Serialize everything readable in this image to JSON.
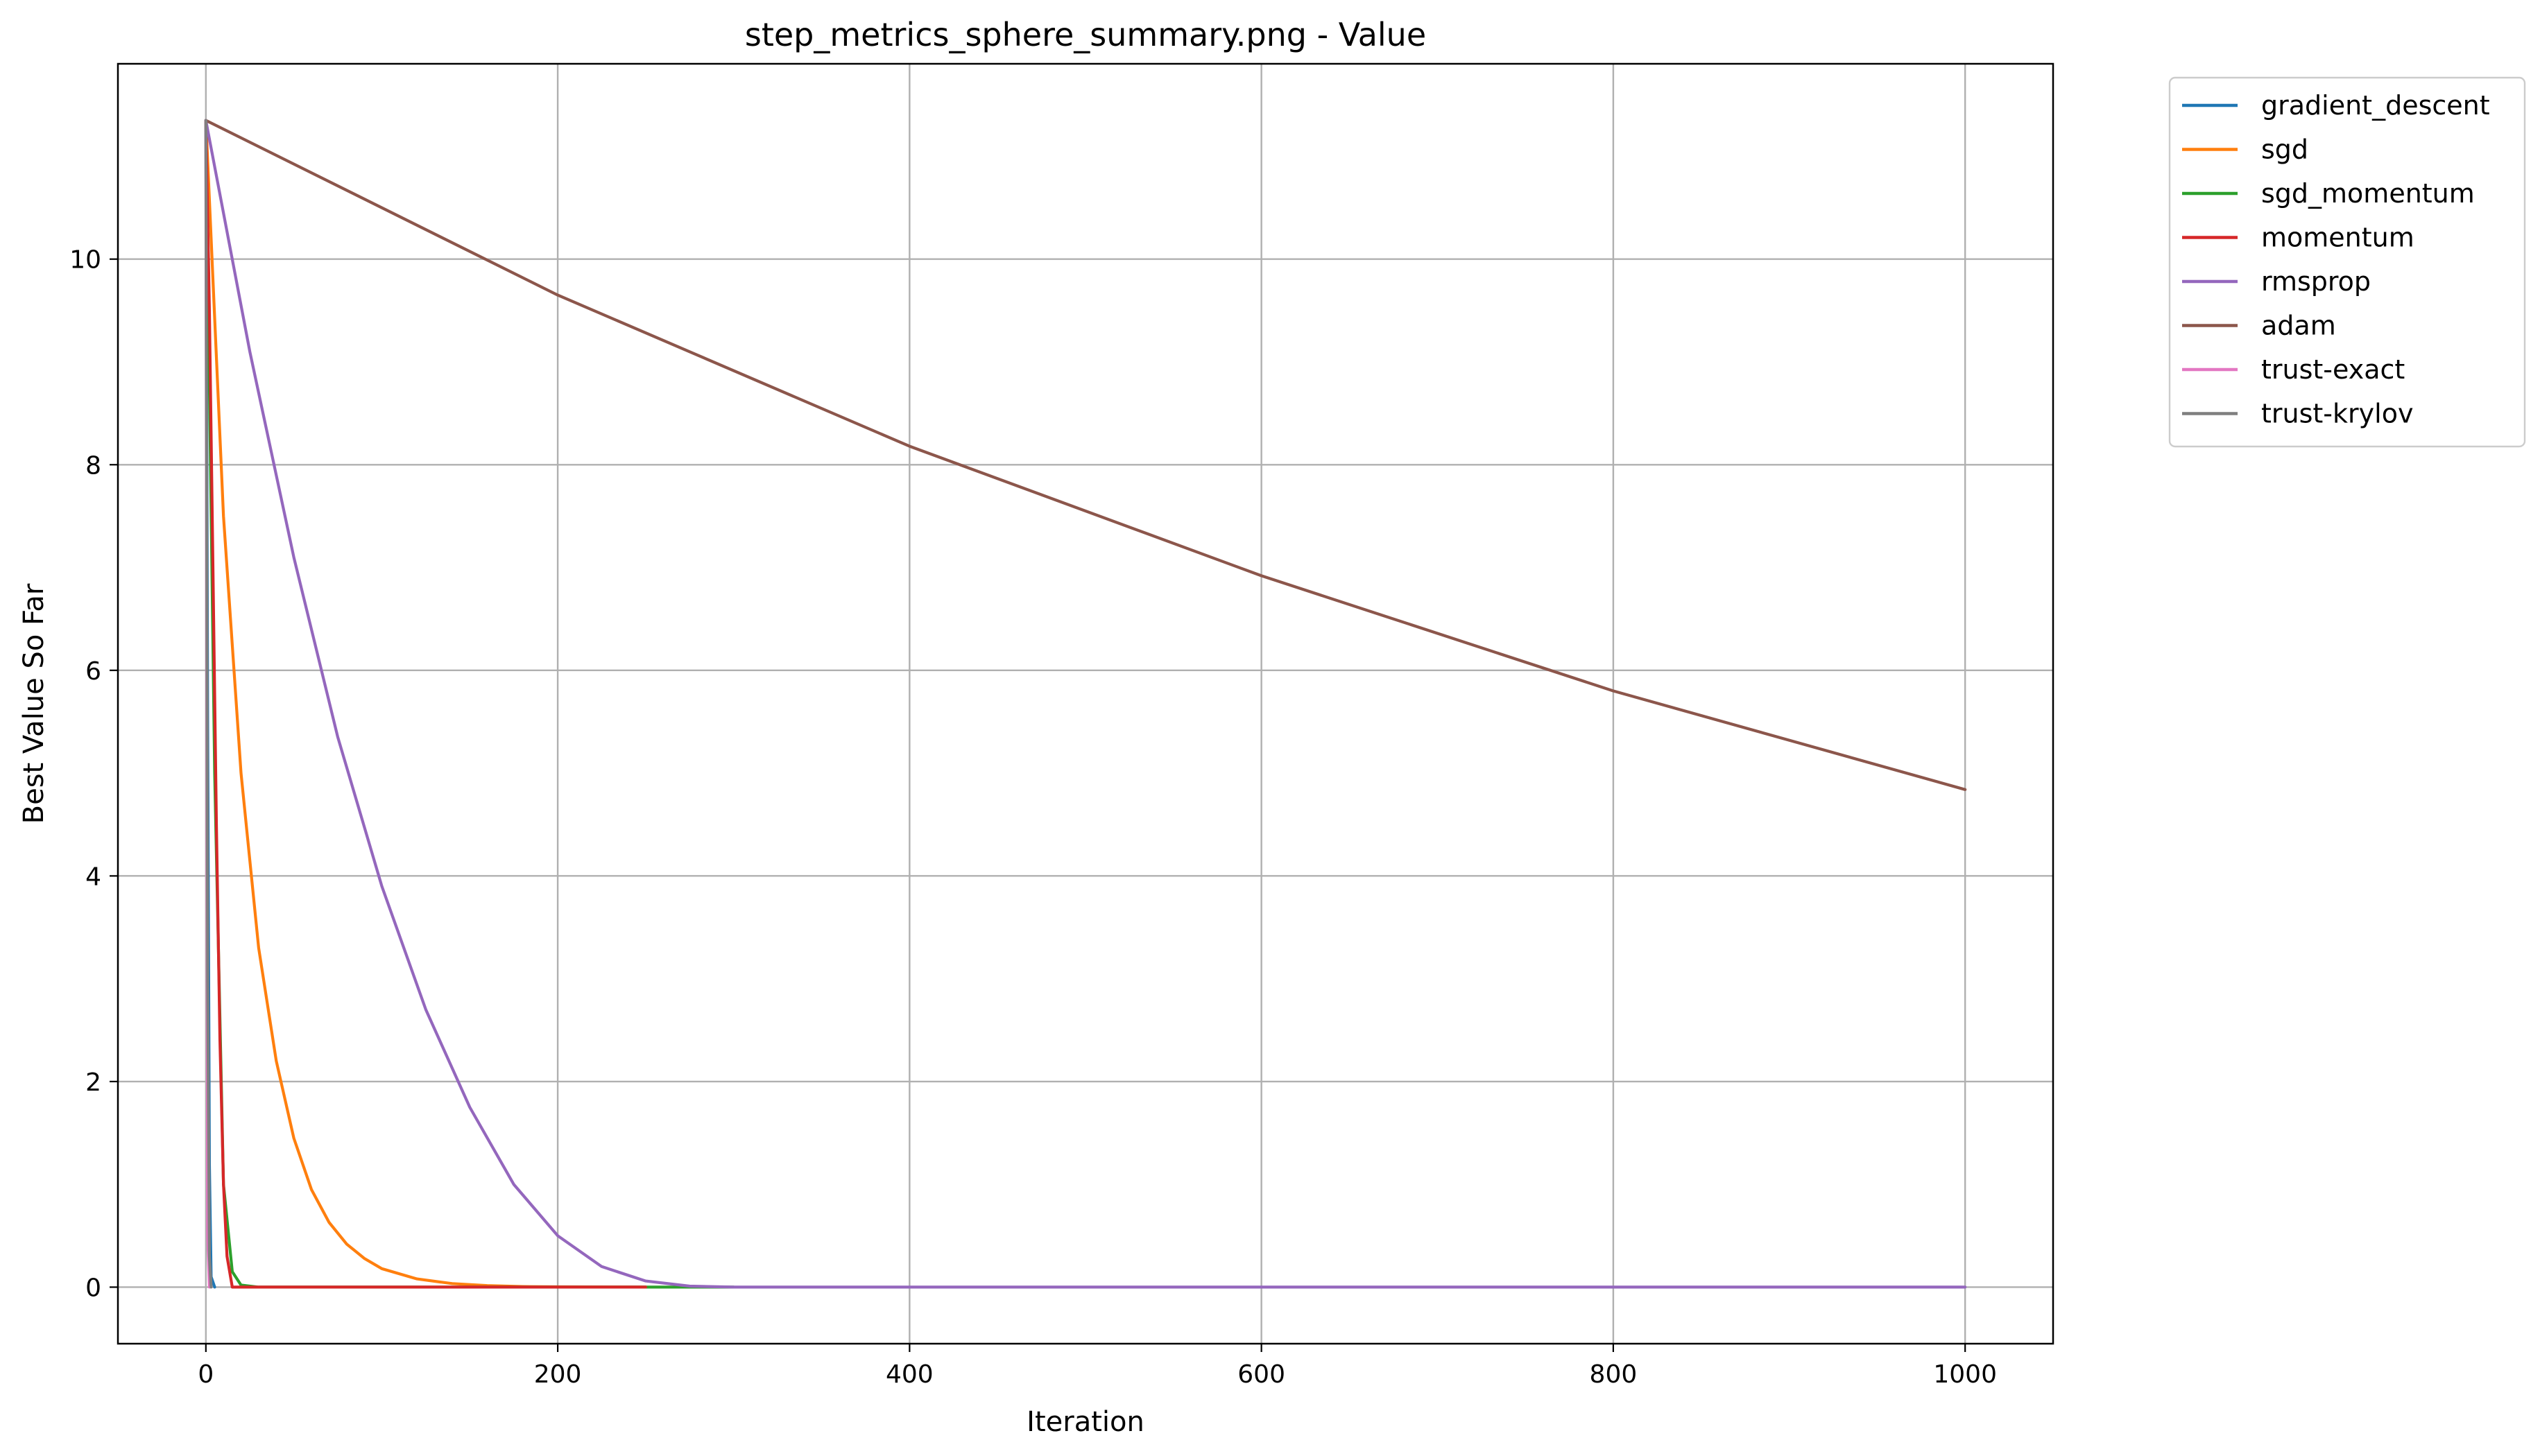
{
  "chart_data": {
    "type": "line",
    "title": "step_metrics_sphere_summary.png - Value",
    "xlabel": "Iteration",
    "ylabel": "Best Value So Far",
    "xlim": [
      -50,
      1050
    ],
    "ylim": [
      -0.55,
      11.9
    ],
    "xticks": [
      0,
      200,
      400,
      600,
      800,
      1000
    ],
    "yticks": [
      0,
      2,
      4,
      6,
      8,
      10
    ],
    "grid": true,
    "legend_position": "outside-top-right",
    "series": [
      {
        "name": "gradient_descent",
        "color": "#1f77b4",
        "x": [
          0,
          1,
          2,
          3,
          5
        ],
        "y": [
          11.35,
          5.5,
          1.2,
          0.1,
          0
        ]
      },
      {
        "name": "sgd",
        "color": "#ff7f0e",
        "x": [
          0,
          10,
          20,
          30,
          40,
          50,
          60,
          70,
          80,
          90,
          100,
          120,
          140,
          160,
          180,
          200,
          250
        ],
        "y": [
          11.35,
          7.5,
          5.0,
          3.3,
          2.2,
          1.45,
          0.95,
          0.63,
          0.42,
          0.28,
          0.18,
          0.08,
          0.035,
          0.015,
          0.006,
          0.003,
          0
        ]
      },
      {
        "name": "sgd_momentum",
        "color": "#2ca02c",
        "x": [
          0,
          5,
          10,
          15,
          20,
          30,
          250,
          300
        ],
        "y": [
          11.35,
          5.0,
          1.0,
          0.15,
          0.02,
          0,
          0,
          0
        ]
      },
      {
        "name": "momentum",
        "color": "#d62728",
        "x": [
          0,
          2,
          4,
          6,
          8,
          10,
          12,
          15,
          250
        ],
        "y": [
          11.35,
          9.5,
          7.0,
          4.5,
          2.4,
          1.0,
          0.3,
          0,
          0
        ]
      },
      {
        "name": "rmsprop",
        "color": "#9467bd",
        "x": [
          0,
          25,
          50,
          75,
          100,
          125,
          150,
          175,
          200,
          225,
          250,
          275,
          300,
          1000
        ],
        "y": [
          11.35,
          9.1,
          7.1,
          5.35,
          3.9,
          2.7,
          1.75,
          1.0,
          0.5,
          0.2,
          0.06,
          0.01,
          0,
          0
        ]
      },
      {
        "name": "adam",
        "color": "#8c564b",
        "x": [
          0,
          200,
          400,
          600,
          800,
          1000
        ],
        "y": [
          11.35,
          9.65,
          8.18,
          6.92,
          5.8,
          4.84
        ]
      },
      {
        "name": "trust-exact",
        "color": "#e377c2",
        "x": [
          0,
          1,
          2
        ],
        "y": [
          11.35,
          0.5,
          0
        ]
      },
      {
        "name": "trust-krylov",
        "color": "#7f7f7f",
        "x": [
          0,
          1,
          2,
          3
        ],
        "y": [
          11.35,
          3.0,
          0.3,
          0
        ]
      }
    ]
  }
}
